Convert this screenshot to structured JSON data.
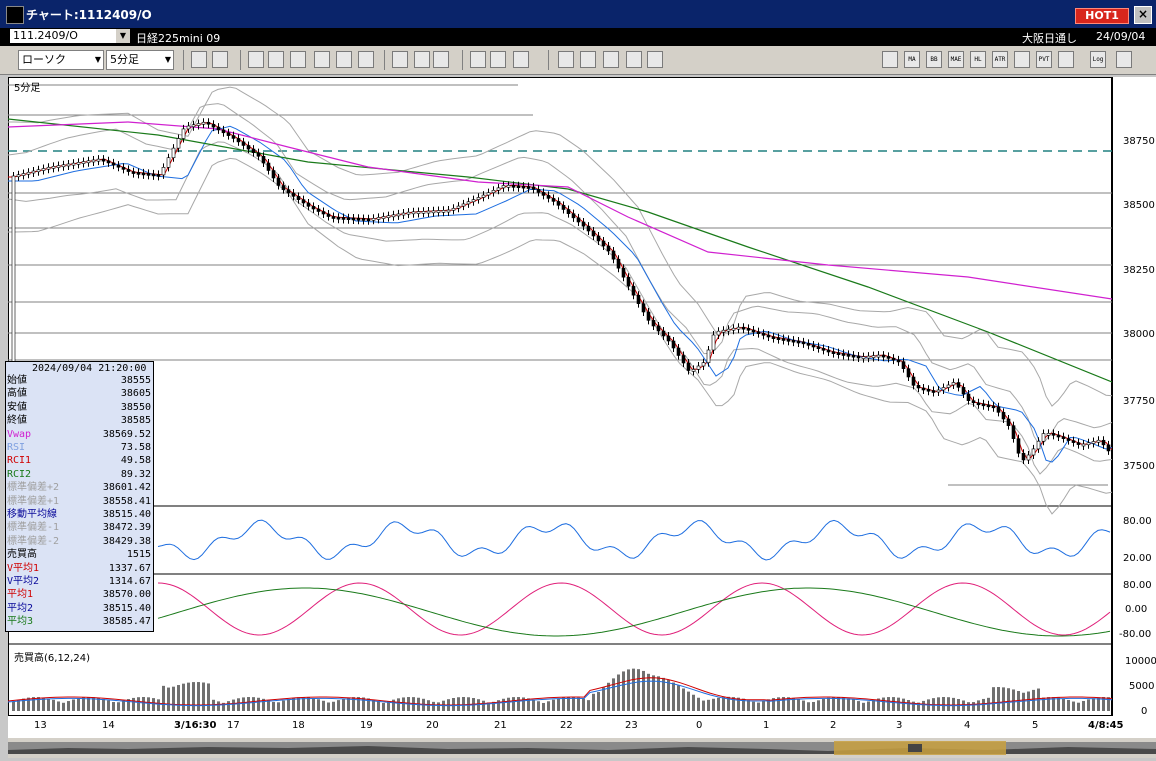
{
  "window": {
    "title": "チャート:1112409/O",
    "hot_badge": "HOT1"
  },
  "infobar": {
    "symbol": "111.2409/O",
    "name": "日経225mini 09",
    "session": "大阪日通し",
    "date": "24/09/04"
  },
  "toolbar": {
    "chart_type": "ローソク",
    "timeframe": "5分足",
    "tool_icons": [
      "zoom-icon",
      "cursor-icon",
      "draw-line-icon",
      "pen-icon",
      "select-arrow-icon",
      "undo-icon",
      "document-icon",
      "trash-icon",
      "candle-up-icon",
      "candle-down-icon",
      "all-icon",
      "grid-icon",
      "brush-icon",
      "color-icon",
      "hand-icon",
      "search-icon",
      "table-icon",
      "delete-icon",
      "info-icon"
    ],
    "indicator_buttons": [
      "MA",
      "BB",
      "MAE",
      "HL",
      "ATR",
      "PVT",
      "Log"
    ]
  },
  "chart": {
    "timeframe_label": "5分足",
    "volume_label": "売買高(6,12,24)",
    "price_axis": [
      "38750",
      "38500",
      "38250",
      "38000",
      "37750",
      "37500"
    ],
    "rsi_axis": [
      "80.00",
      "20.00"
    ],
    "rci_axis": [
      "80.00",
      "0.00",
      "-80.00"
    ],
    "volume_axis": [
      "10000",
      "5000",
      "0"
    ],
    "x_labels": [
      "13",
      "14",
      "3/16:30",
      "17",
      "18",
      "19",
      "20",
      "21",
      "22",
      "23",
      "0",
      "1",
      "2",
      "3",
      "4",
      "5",
      "4/8:45"
    ]
  },
  "colors": {
    "bg": "#ffffff",
    "titlebar": "#0a246a",
    "info_panel": "#dbe3f5",
    "candle_up": "#ffffff",
    "candle_down": "#000000",
    "ma_red": "#d00000",
    "ma_blue": "#1e6ee0",
    "ma_green": "#1a7a1a",
    "vwap_magenta": "#d020d0",
    "bollinger": "#a8a8a8",
    "dashed_level": "#208080"
  },
  "info_panel": {
    "datetime": "2024/09/04 21:20:00",
    "rows": [
      {
        "label": "始値",
        "value": "38555",
        "color": "#000000"
      },
      {
        "label": "高値",
        "value": "38605",
        "color": "#000000"
      },
      {
        "label": "安値",
        "value": "38550",
        "color": "#000000"
      },
      {
        "label": "終値",
        "value": "38585",
        "color": "#000000"
      },
      {
        "label": "Vwap",
        "value": "38569.52",
        "color": "#d020d0"
      },
      {
        "label": "RSI",
        "value": "73.58",
        "color": "#7fa0e0"
      },
      {
        "label": "RCI1",
        "value": "49.58",
        "color": "#d00000"
      },
      {
        "label": "RCI2",
        "value": "89.32",
        "color": "#1a7a1a"
      },
      {
        "label": "標準偏差+2",
        "value": "38601.42",
        "color": "#a0a0a0"
      },
      {
        "label": "標準偏差+1",
        "value": "38558.41",
        "color": "#a0a0a0"
      },
      {
        "label": "移動平均線",
        "value": "38515.40",
        "color": "#0a0a9a"
      },
      {
        "label": "標準偏差-1",
        "value": "38472.39",
        "color": "#a0a0a0"
      },
      {
        "label": "標準偏差-2",
        "value": "38429.38",
        "color": "#a0a0a0"
      },
      {
        "label": "売買高",
        "value": "1515",
        "color": "#000000"
      },
      {
        "label": "V平均1",
        "value": "1337.67",
        "color": "#d00000"
      },
      {
        "label": "V平均2",
        "value": "1314.67",
        "color": "#0a0a9a"
      },
      {
        "label": "平均1",
        "value": "38570.00",
        "color": "#d00000"
      },
      {
        "label": "平均2",
        "value": "38515.40",
        "color": "#0a0a9a"
      },
      {
        "label": "平均3",
        "value": "38585.47",
        "color": "#1a7a1a"
      }
    ]
  }
}
